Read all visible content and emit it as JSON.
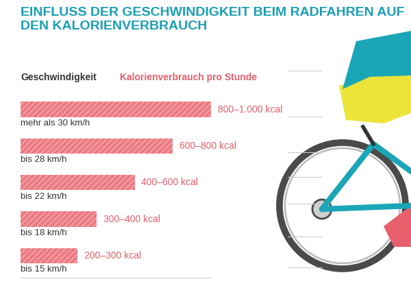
{
  "chart_data": {
    "type": "bar",
    "title": "EINFLUSS DER GESCHWINDIGKEIT BEIM RADFAHREN AUF DEN KALORIENVERBRAUCH",
    "category_header": "Geschwindigkeit",
    "value_header": "Kalorienverbrauch pro Stunde",
    "orientation": "horizontal",
    "categories": [
      "mehr als 30 km/h",
      "bis 28 km/h",
      "bis 22 km/h",
      "bis 18 km/h",
      "bis 15 km/h"
    ],
    "values": [
      1000,
      800,
      600,
      400,
      300
    ],
    "value_labels": [
      "800–1.000 kcal",
      "600–800 kcal",
      "400–600 kcal",
      "300–400 kcal",
      "200–300 kcal"
    ],
    "data_labels": true,
    "color": "#ec7a82",
    "xlim": [
      0,
      1000
    ],
    "xticks": [],
    "tick_labels": false,
    "grid": false
  }
}
